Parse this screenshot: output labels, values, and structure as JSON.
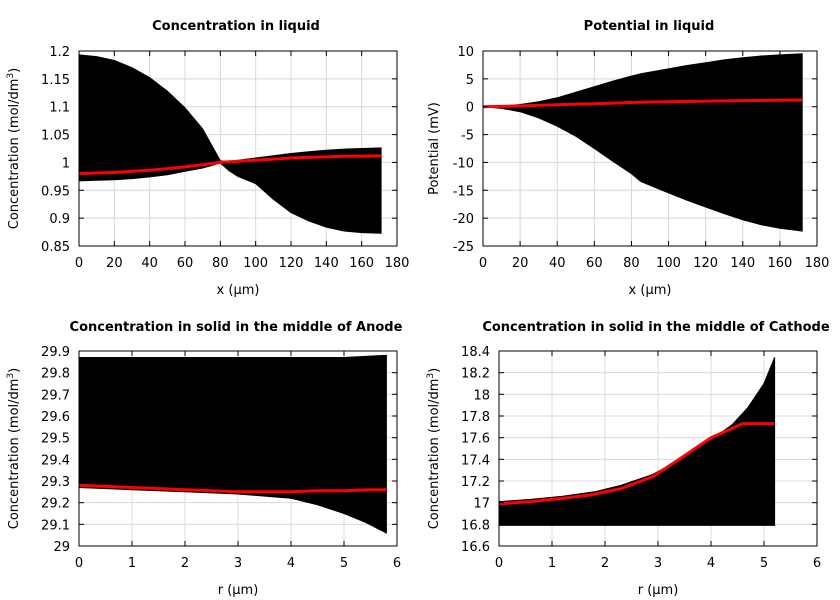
{
  "chart_data": [
    {
      "type": "line",
      "title": "Concentration in liquid",
      "xlabel": "x (µm)",
      "ylabel": "Concentration (mol/dm³)",
      "xlim": [
        0,
        180
      ],
      "ylim": [
        0.85,
        1.2
      ],
      "xticks": [
        "0",
        "20",
        "40",
        "60",
        "80",
        "100",
        "120",
        "140",
        "160",
        "180"
      ],
      "yticks": [
        "0.85",
        "0.9",
        "0.95",
        "1",
        "1.05",
        "1.1",
        "1.15",
        "1.2"
      ],
      "grid": true,
      "band": {
        "color": "#000000",
        "x": [
          0,
          10,
          20,
          30,
          40,
          50,
          60,
          70,
          80,
          85,
          90,
          100,
          110,
          120,
          130,
          140,
          150,
          160,
          171
        ],
        "upper": [
          1.193,
          1.19,
          1.183,
          1.17,
          1.152,
          1.128,
          1.098,
          1.06,
          1.003,
          1.001,
          1.004,
          1.008,
          1.012,
          1.016,
          1.019,
          1.022,
          1.024,
          1.025,
          1.026
        ],
        "lower": [
          0.967,
          0.968,
          0.969,
          0.971,
          0.974,
          0.978,
          0.984,
          0.99,
          0.999,
          0.985,
          0.975,
          0.962,
          0.934,
          0.91,
          0.895,
          0.884,
          0.877,
          0.874,
          0.873
        ]
      },
      "series": [
        {
          "color": "#ff0000",
          "x": [
            0,
            10,
            20,
            30,
            40,
            50,
            60,
            70,
            80,
            90,
            100,
            110,
            120,
            130,
            140,
            150,
            160,
            171
          ],
          "values": [
            0.98,
            0.981,
            0.982,
            0.984,
            0.986,
            0.989,
            0.992,
            0.996,
            1.0,
            1.002,
            1.004,
            1.006,
            1.008,
            1.009,
            1.01,
            1.011,
            1.011,
            1.012
          ]
        }
      ]
    },
    {
      "type": "line",
      "title": "Potential in liquid",
      "xlabel": "x (µm)",
      "ylabel": "Potential (mV)",
      "xlim": [
        0,
        180
      ],
      "ylim": [
        -25,
        10
      ],
      "xticks": [
        "0",
        "20",
        "40",
        "60",
        "80",
        "100",
        "120",
        "140",
        "160",
        "180"
      ],
      "yticks": [
        "-25",
        "-20",
        "-15",
        "-10",
        "-5",
        "0",
        "5",
        "10"
      ],
      "grid": true,
      "band": {
        "color": "#000000",
        "x": [
          0,
          10,
          20,
          30,
          40,
          50,
          60,
          70,
          80,
          85,
          95,
          110,
          120,
          130,
          140,
          150,
          160,
          172
        ],
        "upper": [
          0.0,
          0.1,
          0.4,
          0.9,
          1.6,
          2.6,
          3.6,
          4.6,
          5.5,
          5.9,
          6.5,
          7.4,
          7.9,
          8.4,
          8.8,
          9.1,
          9.3,
          9.5
        ],
        "lower": [
          0.0,
          -0.3,
          -0.9,
          -2.0,
          -3.5,
          -5.3,
          -7.5,
          -9.8,
          -12.0,
          -13.4,
          -14.8,
          -16.8,
          -18.0,
          -19.2,
          -20.3,
          -21.2,
          -21.8,
          -22.3
        ]
      },
      "series": [
        {
          "color": "#ff0000",
          "x": [
            0,
            10,
            20,
            40,
            60,
            80,
            100,
            120,
            140,
            160,
            172
          ],
          "values": [
            0.0,
            0.05,
            0.15,
            0.35,
            0.55,
            0.75,
            0.9,
            1.0,
            1.1,
            1.15,
            1.2
          ]
        }
      ]
    },
    {
      "type": "line",
      "title": "Concentration in solid in the middle of Anode",
      "xlabel": "r (µm)",
      "ylabel": "Concentration (mol/dm³)",
      "xlim": [
        0,
        6
      ],
      "ylim": [
        29,
        29.9
      ],
      "xticks": [
        "0",
        "1",
        "2",
        "3",
        "4",
        "5",
        "6"
      ],
      "yticks": [
        "29",
        "29.1",
        "29.2",
        "29.3",
        "29.4",
        "29.5",
        "29.6",
        "29.7",
        "29.8",
        "29.9"
      ],
      "grid": true,
      "band": {
        "color": "#000000",
        "x": [
          0,
          1,
          2,
          3,
          4,
          4.5,
          5,
          5.4,
          5.8
        ],
        "upper": [
          29.87,
          29.87,
          29.87,
          29.87,
          29.87,
          29.87,
          29.87,
          29.875,
          29.88
        ],
        "lower": [
          29.27,
          29.26,
          29.25,
          29.24,
          29.22,
          29.19,
          29.15,
          29.11,
          29.06
        ]
      },
      "series": [
        {
          "color": "#ff0000",
          "x": [
            0,
            0.5,
            1,
            1.5,
            2,
            2.5,
            3,
            3.5,
            4,
            4.5,
            5,
            5.5,
            5.8
          ],
          "values": [
            29.28,
            29.275,
            29.27,
            29.265,
            29.26,
            29.255,
            29.25,
            29.25,
            29.25,
            29.255,
            29.255,
            29.26,
            29.26
          ]
        }
      ]
    },
    {
      "type": "line",
      "title": "Concentration in solid in the middle of Cathode",
      "xlabel": "r (µm)",
      "ylabel": "Concentration (mol/dm³)",
      "xlim": [
        0,
        6
      ],
      "ylim": [
        16.6,
        18.4
      ],
      "xticks": [
        "0",
        "1",
        "2",
        "3",
        "4",
        "5",
        "6"
      ],
      "yticks": [
        "16.6",
        "16.8",
        "17",
        "17.2",
        "17.4",
        "17.6",
        "17.8",
        "18",
        "18.2",
        "18.4"
      ],
      "grid": true,
      "band": {
        "color": "#000000",
        "x": [
          0,
          0.6,
          1.2,
          1.8,
          2.3,
          2.9,
          3.5,
          4.0,
          4.4,
          4.7,
          5.0,
          5.2
        ],
        "upper": [
          17.01,
          17.03,
          17.06,
          17.1,
          17.16,
          17.26,
          17.42,
          17.58,
          17.72,
          17.88,
          18.1,
          18.34
        ],
        "lower": [
          16.79,
          16.79,
          16.79,
          16.79,
          16.79,
          16.79,
          16.79,
          16.79,
          16.79,
          16.79,
          16.79,
          16.79
        ]
      },
      "series": [
        {
          "color": "#ff0000",
          "x": [
            0,
            0.6,
            1.2,
            1.7,
            2.3,
            2.9,
            3.4,
            4.0,
            4.6,
            5.2
          ],
          "values": [
            16.99,
            17.01,
            17.04,
            17.07,
            17.13,
            17.24,
            17.4,
            17.6,
            17.73,
            17.73
          ]
        }
      ]
    }
  ]
}
